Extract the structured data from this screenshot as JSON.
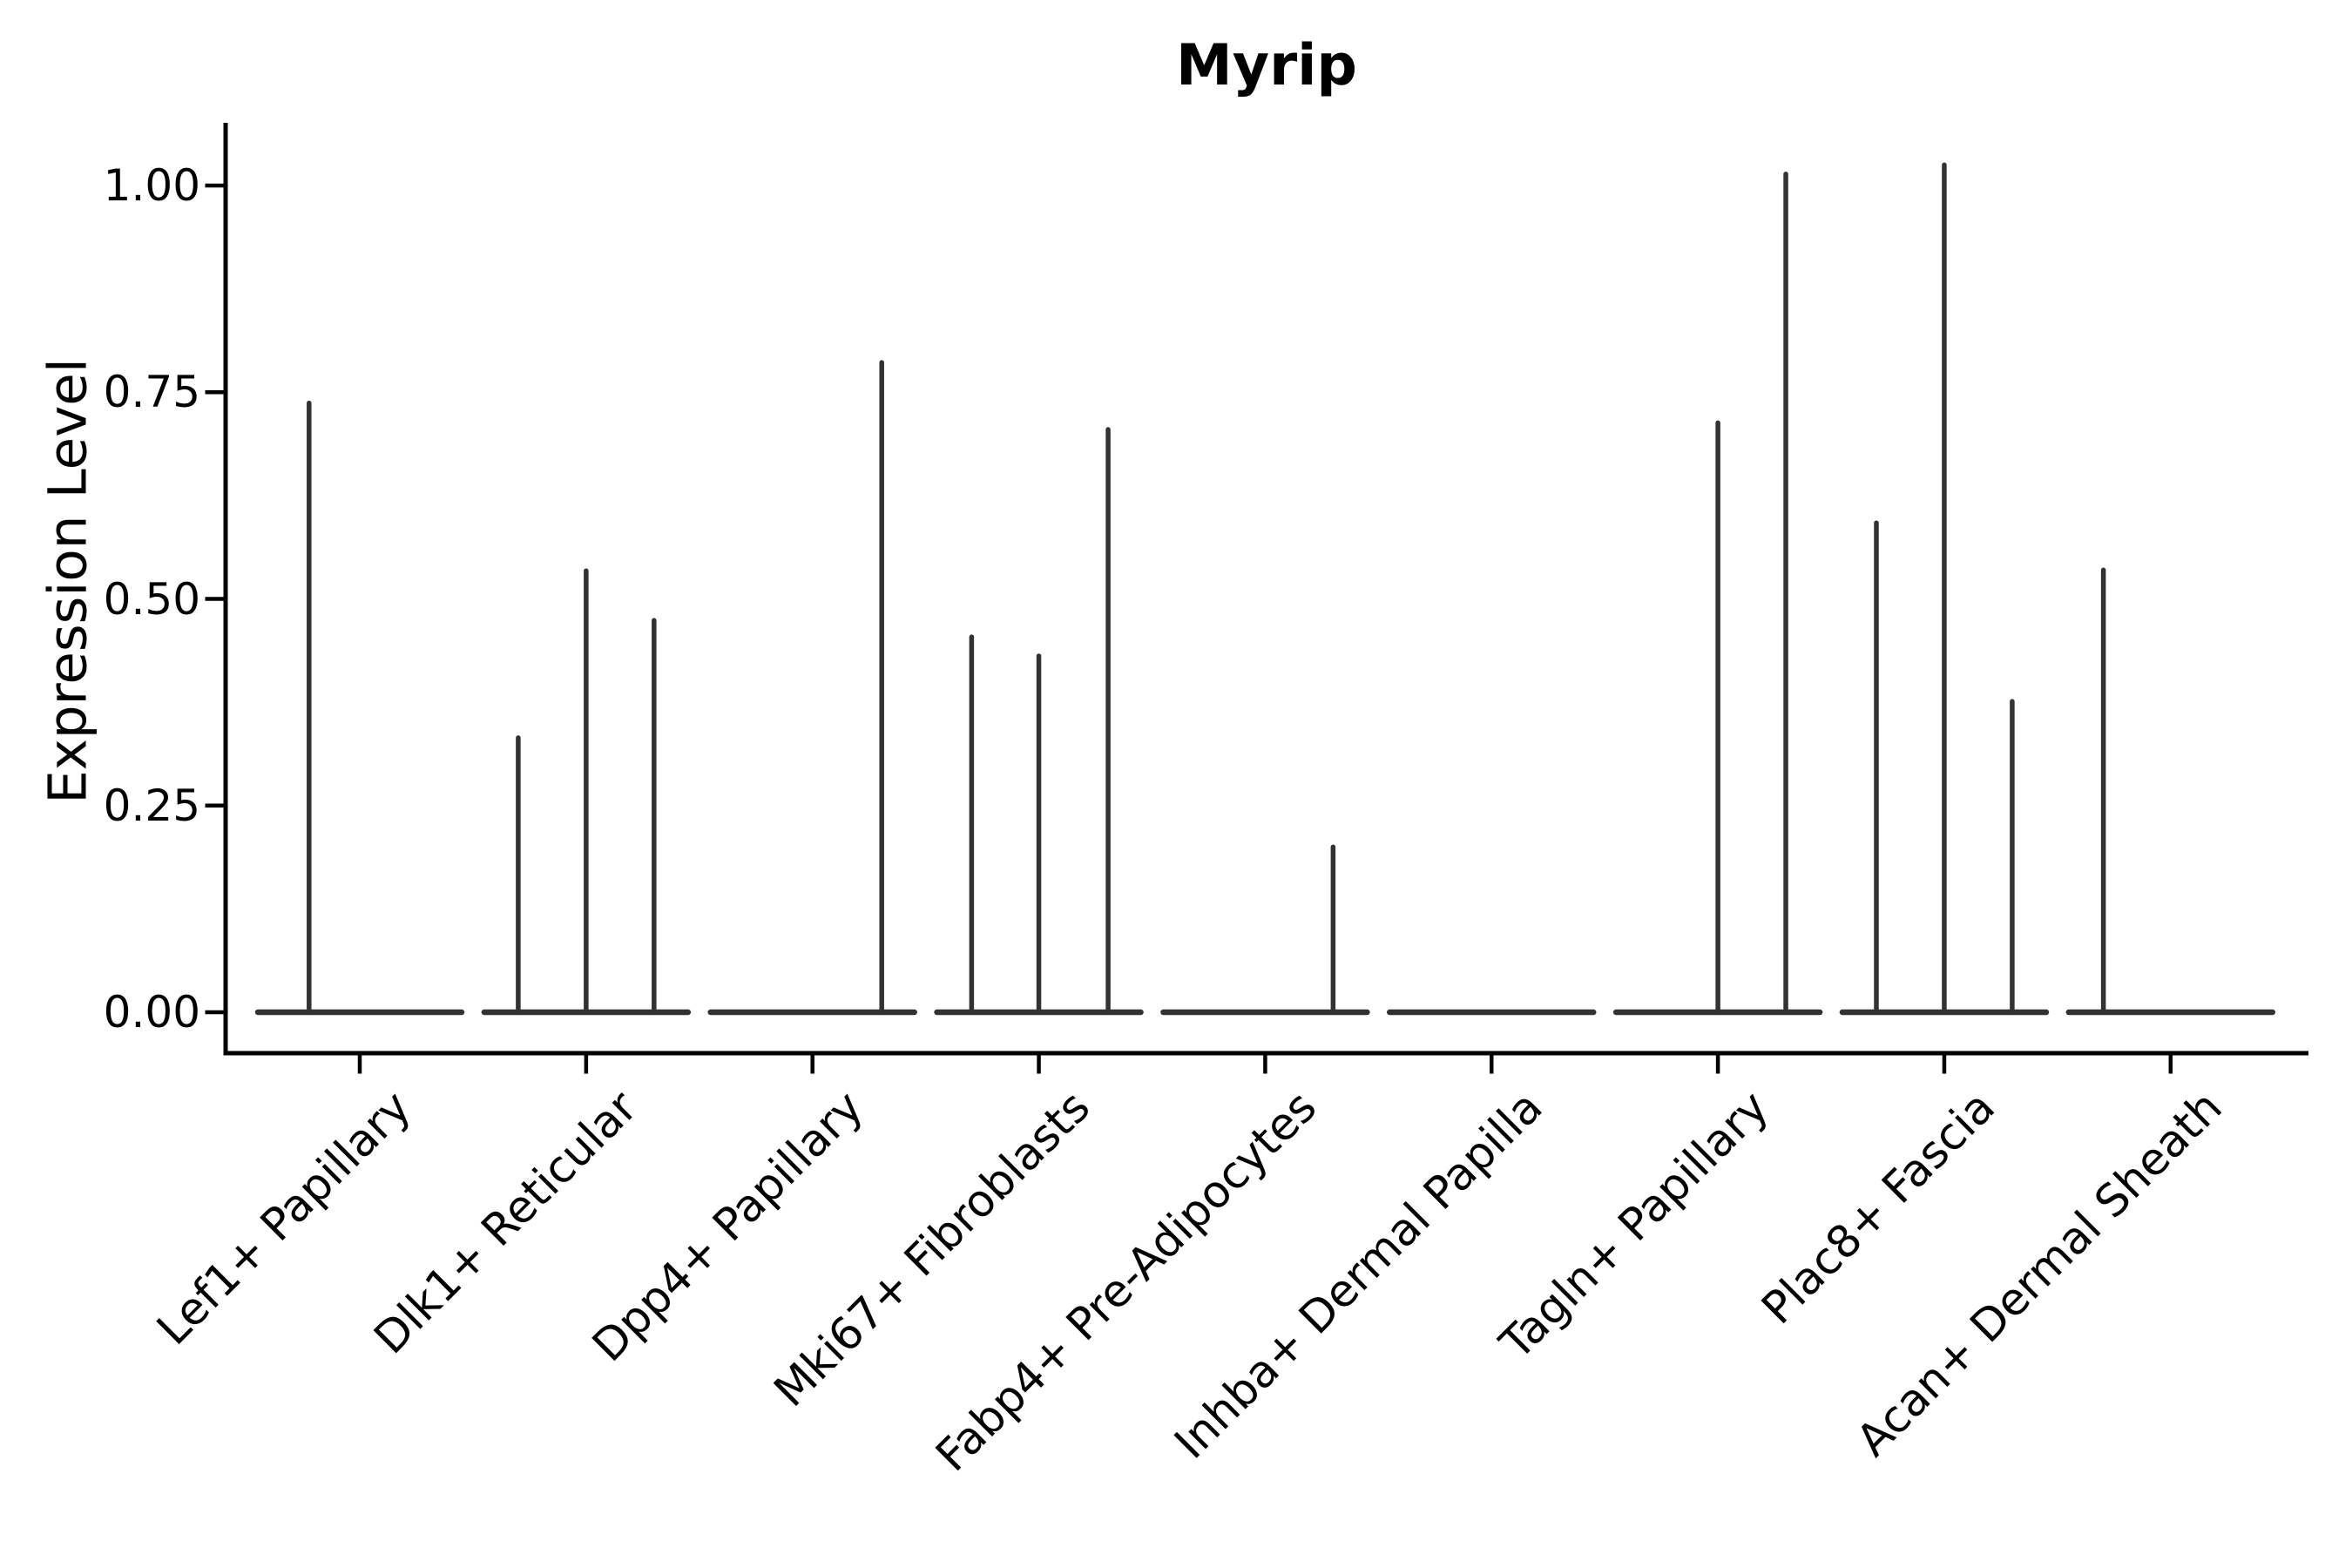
{
  "figure": {
    "background_color": "#ffffff",
    "text_color": "#000000"
  },
  "chart_data": {
    "type": "violin",
    "title": "Myrip",
    "xlabel": "",
    "ylabel": "Expression Level",
    "ylim": [
      -0.05,
      1.08
    ],
    "grid": false,
    "legend": false,
    "axis_color": "#000000",
    "violin_line_color": "#323232",
    "x_tick_rotation_deg": 45,
    "y_ticks": [
      {
        "value": 0.0,
        "label": "0.00"
      },
      {
        "value": 0.25,
        "label": "0.25"
      },
      {
        "value": 0.5,
        "label": "0.50"
      },
      {
        "value": 0.75,
        "label": "0.75"
      },
      {
        "value": 1.0,
        "label": "1.00"
      }
    ],
    "categories": [
      "Lef1+ Papillary",
      "Dlk1+ Reticular",
      "Dpp4+ Papillary",
      "Mki67+ Fibroblasts",
      "Fabp4+ Pre-Adipocytes",
      "Inhba+ Dermal Papilla",
      "Tagln+ Papillary",
      "Plac8+ Fascia",
      "Acan+ Dermal Sheath"
    ],
    "series": [
      {
        "category": "Lef1+ Papillary",
        "zero_line": true,
        "spikes": [
          {
            "x_offset_frac": -0.224,
            "value": 0.737
          }
        ]
      },
      {
        "category": "Dlk1+ Reticular",
        "zero_line": true,
        "spikes": [
          {
            "x_offset_frac": -0.3,
            "value": 0.332
          },
          {
            "x_offset_frac": 0.0,
            "value": 0.534
          },
          {
            "x_offset_frac": 0.3,
            "value": 0.474
          }
        ]
      },
      {
        "category": "Dpp4+ Papillary",
        "zero_line": true,
        "spikes": [
          {
            "x_offset_frac": 0.306,
            "value": 0.786
          }
        ]
      },
      {
        "category": "Mki67+ Fibroblasts",
        "zero_line": true,
        "spikes": [
          {
            "x_offset_frac": -0.297,
            "value": 0.454
          },
          {
            "x_offset_frac": 0.0,
            "value": 0.431
          },
          {
            "x_offset_frac": 0.306,
            "value": 0.705
          }
        ]
      },
      {
        "category": "Fabp4+ Pre-Adipocytes",
        "zero_line": true,
        "spikes": [
          {
            "x_offset_frac": 0.3,
            "value": 0.2
          }
        ]
      },
      {
        "category": "Inhba+ Dermal Papilla",
        "zero_line": true,
        "spikes": []
      },
      {
        "category": "Tagln+ Papillary",
        "zero_line": true,
        "spikes": [
          {
            "x_offset_frac": 0.0,
            "value": 0.713
          },
          {
            "x_offset_frac": 0.3,
            "value": 1.014
          }
        ]
      },
      {
        "category": "Plac8+ Fascia",
        "zero_line": true,
        "spikes": [
          {
            "x_offset_frac": -0.3,
            "value": 0.592
          },
          {
            "x_offset_frac": 0.0,
            "value": 1.025
          },
          {
            "x_offset_frac": 0.3,
            "value": 0.376
          }
        ]
      },
      {
        "category": "Acan+ Dermal Sheath",
        "zero_line": true,
        "spikes": [
          {
            "x_offset_frac": -0.297,
            "value": 0.535
          }
        ]
      }
    ]
  }
}
